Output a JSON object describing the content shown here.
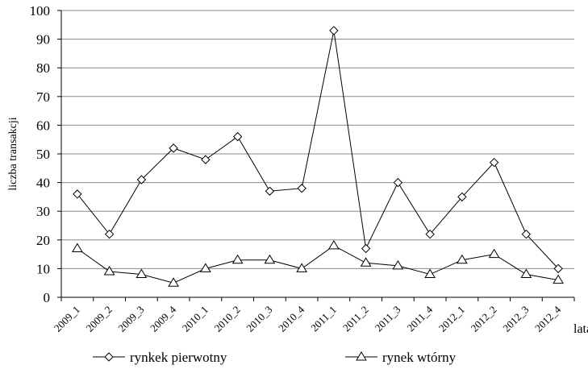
{
  "chart_data": {
    "type": "line",
    "ylabel": "liczba transakcji",
    "xlabel": "lata",
    "categories": [
      "2009_1",
      "2009_2",
      "2009_3",
      "2009_4",
      "2010_1",
      "2010_2",
      "2010_3",
      "2010_4",
      "2011_1",
      "2011_2",
      "2011_3",
      "2011_4",
      "2012_1",
      "2012_2",
      "2012_3",
      "2012_4"
    ],
    "series": [
      {
        "name": "rynkek pierwotny",
        "color": "#000000",
        "marker": "diamond",
        "values": [
          36,
          22,
          41,
          52,
          48,
          56,
          37,
          38,
          93,
          17,
          40,
          22,
          35,
          47,
          22,
          10
        ]
      },
      {
        "name": "rynek wtórny",
        "color": "#000000",
        "marker": "triangle",
        "values": [
          17,
          9,
          8,
          5,
          10,
          13,
          13,
          10,
          18,
          12,
          11,
          8,
          13,
          15,
          8,
          6
        ]
      }
    ],
    "ylim": [
      0,
      100
    ],
    "yticks": [
      0,
      10,
      20,
      30,
      40,
      50,
      60,
      70,
      80,
      90,
      100
    ],
    "grid": true,
    "legend": "bottom"
  }
}
